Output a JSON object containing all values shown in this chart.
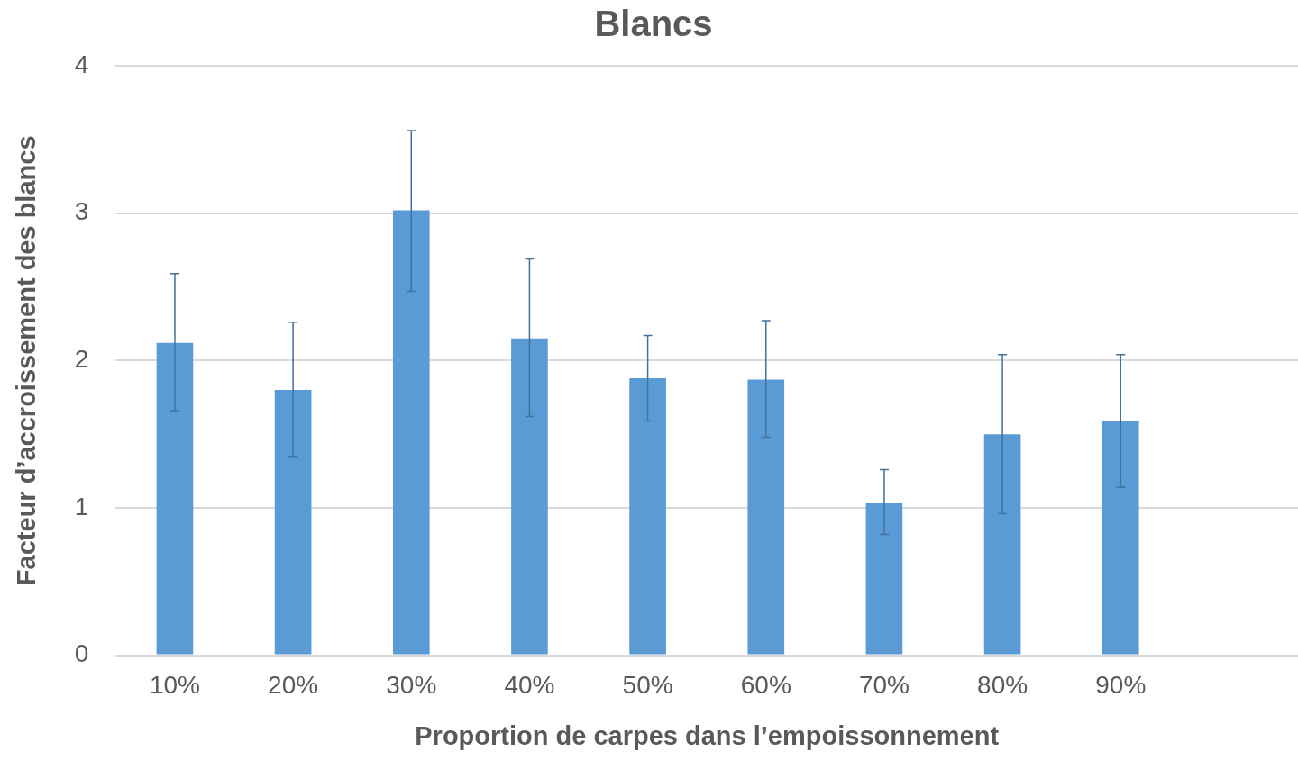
{
  "chart_data": {
    "type": "bar",
    "title": "Blancs",
    "xlabel": "Proportion de carpes dans l’empoissonnement",
    "ylabel": "Facteur d’accroissement des blancs",
    "categories": [
      "10%",
      "20%",
      "30%",
      "40%",
      "50%",
      "60%",
      "70%",
      "80%",
      "90%",
      null
    ],
    "values": [
      2.12,
      1.8,
      3.02,
      2.15,
      1.88,
      1.87,
      1.03,
      1.5,
      1.59,
      null
    ],
    "errors": [
      [
        1.66,
        2.59
      ],
      [
        1.35,
        2.26
      ],
      [
        2.47,
        3.56
      ],
      [
        1.62,
        2.69
      ],
      [
        1.59,
        2.17
      ],
      [
        1.48,
        2.27
      ],
      [
        0.82,
        1.26
      ],
      [
        0.96,
        2.04
      ],
      [
        1.14,
        2.04
      ],
      null
    ],
    "color": "#5b9bd5",
    "ylim": [
      0,
      4
    ],
    "yticks": [
      0,
      1,
      2,
      3,
      4
    ],
    "grid": "y",
    "legend": false
  }
}
